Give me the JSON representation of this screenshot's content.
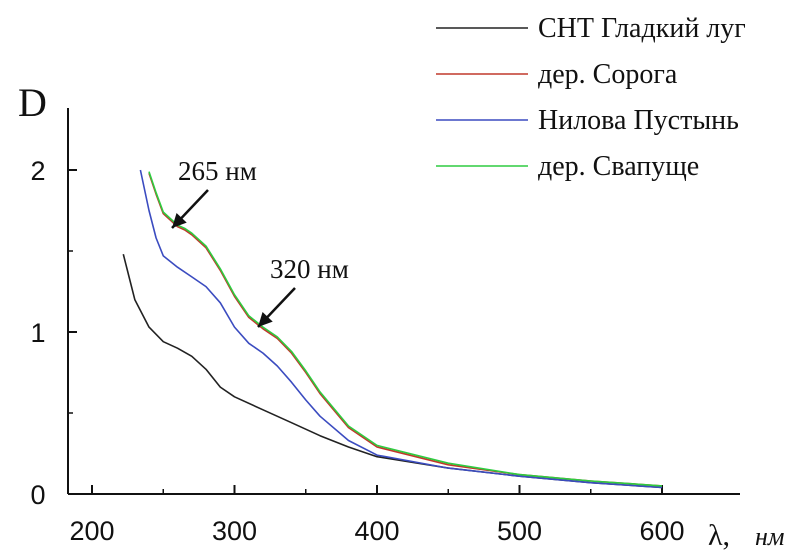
{
  "chart_data": {
    "type": "line",
    "title": "",
    "ylabel": "D",
    "xlabel": "λ,",
    "xlabel_unit": "нм",
    "xlim": [
      200,
      600
    ],
    "ylim": [
      0,
      2
    ],
    "xticks": [
      200,
      300,
      400,
      500,
      600
    ],
    "xtick_labels": [
      "200",
      "300",
      "400",
      "500",
      "600"
    ],
    "yticks": [
      0,
      1,
      2
    ],
    "ytick_labels": [
      "0",
      "1",
      "2"
    ],
    "grid": false,
    "legend_position": "top-right",
    "series": [
      {
        "name": "СНТ Гладкий луг",
        "color": "#222222",
        "x": [
          222,
          230,
          240,
          250,
          260,
          270,
          280,
          290,
          300,
          320,
          340,
          360,
          380,
          400,
          450,
          500,
          550,
          600
        ],
        "y": [
          1.48,
          1.2,
          1.03,
          0.94,
          0.9,
          0.85,
          0.77,
          0.66,
          0.6,
          0.52,
          0.44,
          0.36,
          0.29,
          0.23,
          0.16,
          0.11,
          0.07,
          0.04
        ]
      },
      {
        "name": "дер. Сорога",
        "color": "#c0392b",
        "x": [
          240,
          245,
          250,
          260,
          265,
          270,
          280,
          290,
          300,
          310,
          320,
          330,
          340,
          350,
          360,
          380,
          400,
          450,
          500,
          550,
          600
        ],
        "y": [
          1.98,
          1.85,
          1.73,
          1.65,
          1.63,
          1.6,
          1.52,
          1.38,
          1.22,
          1.09,
          1.02,
          0.96,
          0.87,
          0.75,
          0.62,
          0.41,
          0.29,
          0.18,
          0.12,
          0.08,
          0.05
        ]
      },
      {
        "name": "Нилова Пустынь",
        "color": "#3b4cc0",
        "x": [
          234,
          240,
          245,
          250,
          260,
          270,
          280,
          290,
          300,
          310,
          320,
          330,
          340,
          350,
          360,
          380,
          400,
          450,
          500,
          550,
          600
        ],
        "y": [
          2.0,
          1.75,
          1.58,
          1.47,
          1.4,
          1.34,
          1.28,
          1.18,
          1.03,
          0.93,
          0.87,
          0.79,
          0.69,
          0.58,
          0.48,
          0.33,
          0.24,
          0.16,
          0.11,
          0.07,
          0.04
        ]
      },
      {
        "name": "дер. Свапуще",
        "color": "#2ecc40",
        "x": [
          240,
          245,
          250,
          260,
          265,
          270,
          280,
          290,
          300,
          310,
          320,
          330,
          340,
          350,
          360,
          380,
          400,
          450,
          500,
          550,
          600
        ],
        "y": [
          1.99,
          1.86,
          1.74,
          1.66,
          1.64,
          1.61,
          1.53,
          1.39,
          1.23,
          1.1,
          1.03,
          0.97,
          0.88,
          0.76,
          0.63,
          0.42,
          0.3,
          0.19,
          0.12,
          0.08,
          0.05
        ]
      }
    ],
    "annotations": [
      {
        "text": "265 нм",
        "x": 265,
        "y": 1.64
      },
      {
        "text": "320 нм",
        "x": 320,
        "y": 1.02
      }
    ]
  }
}
